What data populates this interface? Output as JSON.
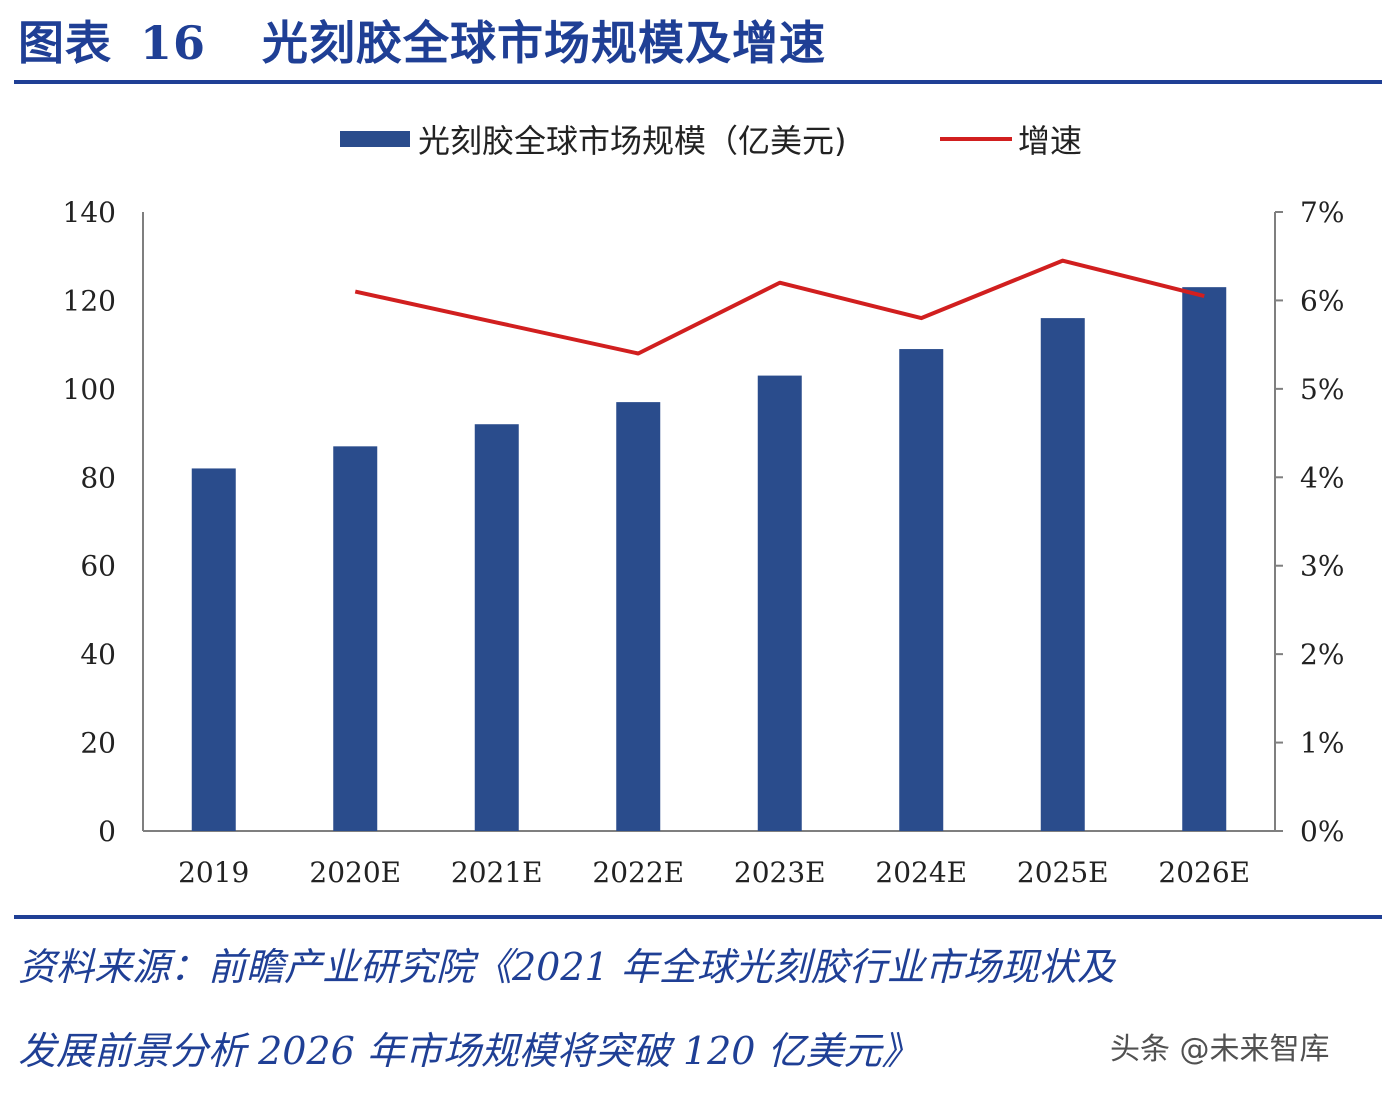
{
  "figure": {
    "label": "图表",
    "number": "16",
    "title": "光刻胶全球市场规模及增速"
  },
  "chart_data": {
    "type": "bar",
    "categories": [
      "2019",
      "2020E",
      "2021E",
      "2022E",
      "2023E",
      "2024E",
      "2025E",
      "2026E"
    ],
    "series": [
      {
        "name": "光刻胶全球市场规模（亿美元)",
        "type": "bar",
        "axis": "left",
        "color": "#2a4c8c",
        "values": [
          82,
          87,
          92,
          97,
          103,
          109,
          116,
          123
        ]
      },
      {
        "name": "增速",
        "type": "line",
        "axis": "right",
        "color": "#d11f1f",
        "values": [
          null,
          6.1,
          5.75,
          5.4,
          6.2,
          5.8,
          6.45,
          6.05
        ]
      }
    ],
    "y_left": {
      "ticks": [
        "0",
        "20",
        "40",
        "60",
        "80",
        "100",
        "120",
        "140"
      ],
      "ylim": [
        0,
        140
      ]
    },
    "y_right": {
      "ticks": [
        "0%",
        "1%",
        "2%",
        "3%",
        "4%",
        "5%",
        "6%",
        "7%"
      ],
      "ylim": [
        0,
        7
      ]
    },
    "legend": {
      "position": "top-center"
    },
    "grid": false
  },
  "source": {
    "line1": "资料来源：前瞻产业研究院《2021 年全球光刻胶行业市场现状及",
    "line2": "发展前景分析 2026 年市场规模将突破 120 亿美元》"
  },
  "watermark": "头条 @未来智库"
}
